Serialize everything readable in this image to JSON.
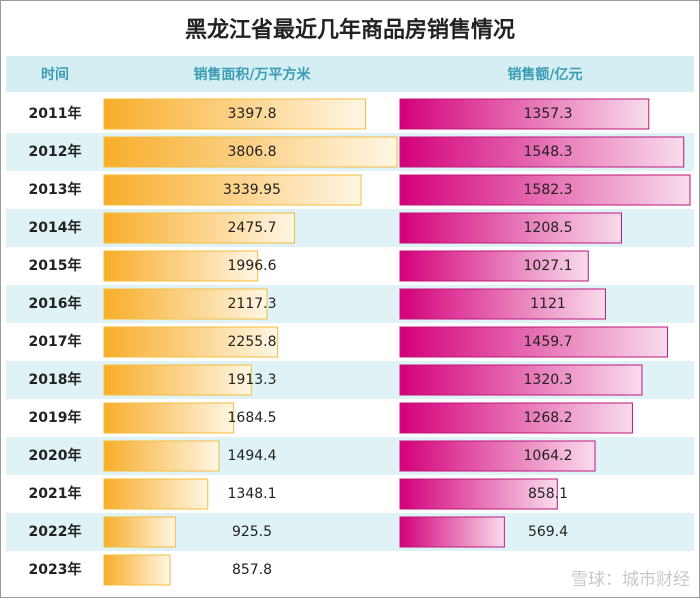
{
  "header": {
    "title": "黑龙江省最近几年商品房销售情况"
  },
  "table": {
    "columns": [
      "时间",
      "销售面积/万平方米",
      "销售额/亿元"
    ],
    "rows": [
      [
        "2011年",
        3397.8,
        1357.3
      ],
      [
        "2012年",
        3806.8,
        1548.3
      ],
      [
        "2013年",
        3339.95,
        1582.3
      ],
      [
        "2014年",
        2475.7,
        1208.5
      ],
      [
        "2015年",
        1996.6,
        1027.1
      ],
      [
        "2016年",
        2117.3,
        1121
      ],
      [
        "2017年",
        2255.8,
        1459.7
      ],
      [
        "2018年",
        1913.3,
        1320.3
      ],
      [
        "2019年",
        1684.5,
        1268.2
      ],
      [
        "2020年",
        1494.4,
        1064.2
      ],
      [
        "2021年",
        1348.1,
        858.1
      ],
      [
        "2022年",
        925.5,
        569.4
      ],
      [
        "2023年",
        857.8,
        null
      ]
    ]
  },
  "watermark": "雪球：城市财经"
}
